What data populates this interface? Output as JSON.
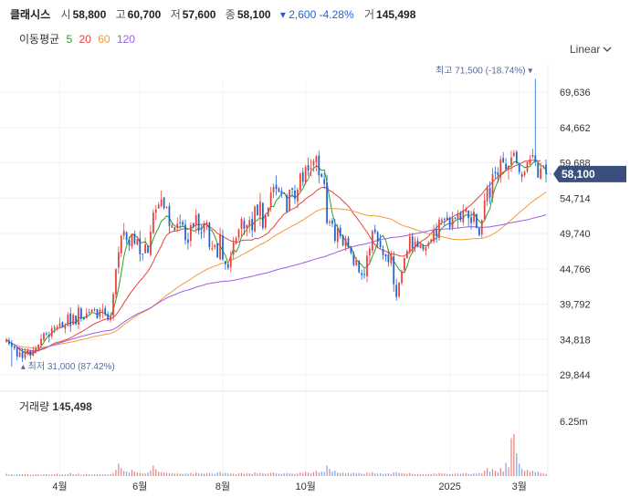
{
  "header": {
    "name": "클래시스",
    "open_label": "시",
    "open": "58,800",
    "high_label": "고",
    "high": "60,700",
    "low_label": "저",
    "low": "57,600",
    "close_label": "종",
    "close": "58,100",
    "change": "▾ 2,600 -4.28%",
    "volume_label": "거",
    "volume": "145,498"
  },
  "ma_legend": {
    "label": "이동평균",
    "items": [
      {
        "label": "5",
        "color": "#2ca02c"
      },
      {
        "label": "20",
        "color": "#e8413c"
      },
      {
        "label": "60",
        "color": "#f39a3b"
      },
      {
        "label": "120",
        "color": "#9b5de5"
      }
    ]
  },
  "scale_selector": {
    "label": "Linear"
  },
  "colors": {
    "up": "#e8413c",
    "down": "#1e63d6",
    "badge": "#3a4f7d"
  },
  "chart_data": {
    "type": "candlestick",
    "price_axis": {
      "ticks": [
        "69,636",
        "64,662",
        "59,688",
        "54,714",
        "49,740",
        "44,766",
        "39,792",
        "34,818",
        "29,844"
      ],
      "tick_values": [
        69636,
        64662,
        59688,
        54714,
        49740,
        44766,
        39792,
        34818,
        29844
      ]
    },
    "x_axis": {
      "ticks": [
        "4월",
        "6월",
        "8월",
        "10월",
        "2025",
        "3월"
      ],
      "tick_index": [
        20,
        50,
        81,
        112,
        166,
        192
      ]
    },
    "current_price": {
      "label": "58,100",
      "value": 58100
    },
    "max_note": {
      "prefix": "최고",
      "value": "71,500",
      "pct": "(-18.74%)",
      "marker": "▾",
      "index": 198,
      "price": 71500
    },
    "min_note": {
      "marker": "▴",
      "prefix": "최저",
      "value": "31,000",
      "pct": "(87.42%)",
      "index": 2,
      "price": 31000
    },
    "closes": [
      34800,
      34200,
      33800,
      33600,
      32400,
      33000,
      32200,
      32800,
      33300,
      32500,
      33200,
      33600,
      34100,
      34900,
      35700,
      35600,
      35200,
      36400,
      36400,
      36600,
      37100,
      36500,
      36900,
      38300,
      36700,
      38300,
      37000,
      39300,
      37700,
      37600,
      38500,
      38600,
      39000,
      39000,
      37800,
      39000,
      39000,
      38300,
      37600,
      38100,
      41200,
      44700,
      47100,
      49400,
      50100,
      48800,
      48000,
      49700,
      48300,
      48900,
      46800,
      46900,
      48200,
      47000,
      50000,
      52700,
      53100,
      53800,
      54500,
      53300,
      53500,
      50800,
      50900,
      50200,
      51100,
      51300,
      51000,
      48800,
      48400,
      50900,
      50700,
      52300,
      50100,
      49800,
      51100,
      51300,
      47800,
      47700,
      48100,
      46400,
      49600,
      46100,
      45400,
      44900,
      46600,
      48500,
      49100,
      50300,
      51800,
      50400,
      50900,
      51600,
      50200,
      53500,
      52300,
      54200,
      50500,
      52300,
      53400,
      55500,
      56300,
      56000,
      55600,
      55400,
      55400,
      52800,
      55900,
      55900,
      54600,
      55900,
      58200,
      57000,
      59100,
      58600,
      59000,
      59900,
      60600,
      57900,
      57700,
      56700,
      51200,
      51400,
      51100,
      48700,
      50500,
      49400,
      48100,
      49000,
      47900,
      47000,
      45300,
      46000,
      44300,
      43900,
      43900,
      46600,
      47600,
      50100,
      49900,
      48600,
      47800,
      46700,
      46500,
      45700,
      46800,
      42600,
      40800,
      42800,
      44400,
      46300,
      47300,
      49300,
      47700,
      48600,
      47800,
      48200,
      47500,
      47800,
      48400,
      48900,
      50300,
      49400,
      51700,
      51700,
      51700,
      51700,
      50600,
      51900,
      51900,
      52600,
      51600,
      53000,
      53200,
      51900,
      51200,
      52800,
      50500,
      49500,
      51600,
      54400,
      56200,
      54800,
      58100,
      58200,
      57900,
      60200,
      59700,
      58800,
      59300,
      60400,
      61100,
      59600,
      58400,
      57700,
      58400,
      59800,
      60200,
      60800,
      59800,
      57600,
      58900,
      59300,
      58100
    ],
    "ma": {
      "5": [
        34800,
        34500,
        34267,
        34100,
        33760,
        33400,
        33160,
        32880,
        32940,
        32760,
        32840,
        33080,
        33340,
        33860,
        34400,
        35020,
        35380,
        35700,
        36060,
        36360,
        36420,
        36580,
        36860,
        37100,
        37120,
        37340,
        37040,
        37860,
        37920,
        37840,
        38060,
        38200,
        38600,
        38560,
        38260,
        38640,
        38640,
        38420,
        38160,
        38000,
        38960,
        40380,
        42040,
        44180,
        46500,
        48060,
        49040,
        49660,
        49460,
        49220,
        48460,
        48460,
        48600,
        47980,
        47860,
        49000,
        49820,
        50580,
        51460,
        51780,
        52200,
        51980,
        51240,
        50820,
        50680,
        50620,
        50800,
        50520,
        50400,
        50400,
        50060,
        50220,
        50480,
        50300,
        51060,
        51120,
        50340,
        50120,
        49360,
        48360,
        48040,
        47240,
        46660,
        45600,
        46560,
        47460,
        47140,
        47880,
        49300,
        49820,
        50320,
        50920,
        50880,
        51460,
        51600,
        52040,
        51600,
        52480,
        52700,
        53540,
        53500,
        54380,
        54760,
        55380,
        55500,
        54720,
        54880,
        55130,
        54820,
        55000,
        55500,
        56080,
        56920,
        57340,
        58540,
        58880,
        59280,
        59020,
        58600,
        58700,
        56920,
        54700,
        52620,
        51220,
        50620,
        49600,
        49340,
        48680,
        47820,
        47940,
        46820,
        46020,
        45700,
        45300,
        44860,
        45070,
        45530,
        46500,
        47380,
        48600,
        49170,
        49440,
        48760,
        47300,
        46510,
        45880,
        45260,
        44660,
        44320,
        44220,
        45120,
        46420,
        47040,
        47760,
        48380,
        48390,
        48030,
        48000,
        48140,
        48560,
        49020,
        48980,
        49900,
        50460,
        50800,
        51020,
        51200,
        51040,
        51560,
        51720,
        51840,
        51940,
        52380,
        52260,
        52280,
        52600,
        51940,
        51470,
        51140,
        51520,
        52460,
        53210,
        55010,
        56200,
        57100,
        57980,
        58180,
        58700,
        59160,
        59200,
        59800,
        59880,
        59400,
        59320,
        59000,
        59120,
        59120,
        59620,
        60000,
        59800,
        59250,
        59240,
        58640
      ],
      "20": [
        34800,
        34500,
        34267,
        34100,
        33760,
        33400,
        33160,
        33050,
        33070,
        32950,
        33050,
        33140,
        33230,
        33370,
        33500,
        33660,
        33850,
        34080,
        34310,
        34400,
        34500,
        34610,
        34730,
        34870,
        35060,
        35250,
        35490,
        35680,
        35880,
        36090,
        36320,
        36570,
        36800,
        37020,
        37200,
        37360,
        37520,
        37660,
        37710,
        37740,
        37940,
        38270,
        38780,
        39340,
        39960,
        40520,
        41110,
        41640,
        42110,
        42620,
        43060,
        43480,
        43950,
        44440,
        45050,
        45790,
        46570,
        47310,
        48000,
        48880,
        49490,
        49800,
        50000,
        50090,
        50130,
        50240,
        50390,
        50330,
        50340,
        50440,
        50660,
        50930,
        51030,
        51010,
        51040,
        50970,
        50720,
        50420,
        50120,
        49750,
        49560,
        49340,
        49090,
        48900,
        48690,
        48620,
        48540,
        48560,
        48740,
        48790,
        48810,
        48800,
        48800,
        49030,
        49000,
        49140,
        49350,
        49560,
        49820,
        50290,
        50630,
        51120,
        51630,
        52050,
        52470,
        52680,
        52950,
        53180,
        53320,
        53600,
        53990,
        54220,
        54620,
        54870,
        55090,
        55380,
        55750,
        56000,
        56190,
        56250,
        56050,
        55800,
        55590,
        55260,
        54990,
        54690,
        54300,
        53960,
        53560,
        53120,
        52480,
        52020,
        51510,
        51010,
        50450,
        49920,
        49300,
        48670,
        48160,
        47750,
        47550,
        47390,
        47250,
        47050,
        46890,
        46820,
        46760,
        46600,
        46540,
        46560,
        46860,
        47130,
        47560,
        47930,
        48280,
        48550,
        48800,
        49000,
        49330,
        49790,
        50180,
        50550,
        50910,
        51290,
        51350,
        51630,
        51840,
        52040,
        52300,
        52480,
        52660,
        52920,
        53110,
        53490,
        53800,
        54170,
        54540,
        54940,
        55310,
        55780,
        56220,
        56580,
        56980,
        57380,
        57700,
        58040,
        58380,
        58550,
        58810,
        58920,
        59180,
        59340,
        59500,
        59680,
        59890,
        59980,
        59990,
        60050,
        60070,
        59970,
        59980
      ],
      "60": [
        34800,
        34500,
        34267,
        34100,
        33960,
        33880,
        33770,
        33720,
        33690,
        33650,
        33620,
        33600,
        33610,
        33660,
        33730,
        33800,
        33870,
        33950,
        34020,
        34090,
        34160,
        34220,
        34290,
        34370,
        34440,
        34520,
        34580,
        34680,
        34770,
        34850,
        34940,
        35040,
        35140,
        35230,
        35300,
        35390,
        35470,
        35540,
        35600,
        35660,
        35800,
        36010,
        36270,
        36570,
        36890,
        37170,
        37420,
        37720,
        37970,
        38230,
        38430,
        38620,
        38830,
        39000,
        39230,
        39520,
        39810,
        40120,
        40450,
        40750,
        41050,
        41310,
        41580,
        41850,
        42120,
        42380,
        42630,
        42840,
        43060,
        43320,
        43580,
        43840,
        44040,
        44240,
        44460,
        44680,
        44840,
        45000,
        45160,
        45270,
        45450,
        45570,
        45690,
        45790,
        45930,
        46090,
        46270,
        46470,
        46700,
        46880,
        47090,
        47300,
        47510,
        47740,
        47960,
        48190,
        48330,
        48530,
        48770,
        49030,
        49300,
        49530,
        49740,
        49950,
        50190,
        50370,
        50580,
        50810,
        50980,
        51180,
        51420,
        51630,
        51890,
        52120,
        52370,
        52620,
        52890,
        53030,
        53150,
        53230,
        53240,
        53240,
        53250,
        53220,
        53220,
        53190,
        53130,
        53100,
        53050,
        52960,
        52840,
        52760,
        52640,
        52520,
        52380,
        52300,
        52240,
        52230,
        52220,
        52180,
        52120,
        52020,
        51940,
        51840,
        51760,
        51560,
        51330,
        51120,
        50940,
        50790,
        50690,
        50590,
        50430,
        50300,
        50170,
        50060,
        49940,
        49820,
        49730,
        49640,
        49560,
        49460,
        49380,
        49270,
        49200,
        49110,
        49020,
        48950,
        48900,
        48870,
        48860,
        48870,
        48910,
        48950,
        48970,
        49020,
        49020,
        49010,
        49050,
        49140,
        49280,
        49410,
        49610,
        49840,
        50080,
        50380,
        50690,
        51020,
        51330,
        51650,
        52000,
        52350,
        52680,
        53000,
        53310,
        53630,
        53950,
        54260,
        54530,
        54770,
        55020,
        55300,
        55560
      ]
    },
    "volumes": [
      0.25,
      0.18,
      0.2,
      0.15,
      0.22,
      0.19,
      0.21,
      0.24,
      0.2,
      0.15,
      0.17,
      0.22,
      0.19,
      0.16,
      0.2,
      0.23,
      0.17,
      0.18,
      0.21,
      0.28,
      0.15,
      0.2,
      0.18,
      0.22,
      0.35,
      0.19,
      0.2,
      0.28,
      0.16,
      0.18,
      0.24,
      0.2,
      0.17,
      0.19,
      0.2,
      0.24,
      0.18,
      0.22,
      0.17,
      0.2,
      0.3,
      0.7,
      1.4,
      0.9,
      0.6,
      0.5,
      0.4,
      0.7,
      0.5,
      0.4,
      0.35,
      0.3,
      0.28,
      0.4,
      0.6,
      1.2,
      0.8,
      0.5,
      0.45,
      0.4,
      0.35,
      0.3,
      0.3,
      0.28,
      0.3,
      0.26,
      0.25,
      0.3,
      0.28,
      0.35,
      0.25,
      0.4,
      0.3,
      0.28,
      0.25,
      0.3,
      0.35,
      0.28,
      0.25,
      0.4,
      0.5,
      0.3,
      0.35,
      0.3,
      0.28,
      0.25,
      0.22,
      0.3,
      0.35,
      0.25,
      0.28,
      0.3,
      0.25,
      0.4,
      0.3,
      0.35,
      0.3,
      0.28,
      0.3,
      0.35,
      0.4,
      0.3,
      0.28,
      0.25,
      0.3,
      0.35,
      0.3,
      0.28,
      0.26,
      0.3,
      0.4,
      0.35,
      0.5,
      0.4,
      0.3,
      0.45,
      0.6,
      0.4,
      0.5,
      0.45,
      1.2,
      0.8,
      0.5,
      0.6,
      0.4,
      0.35,
      0.4,
      0.3,
      0.35,
      0.28,
      0.4,
      0.3,
      0.35,
      0.28,
      0.25,
      0.4,
      0.35,
      0.45,
      0.3,
      0.28,
      0.3,
      0.25,
      0.28,
      0.3,
      0.25,
      0.4,
      0.45,
      0.35,
      0.3,
      0.3,
      0.28,
      0.35,
      0.25,
      0.22,
      0.25,
      0.2,
      0.22,
      0.2,
      0.25,
      0.22,
      0.3,
      0.25,
      0.35,
      0.3,
      0.28,
      0.25,
      0.22,
      0.25,
      0.3,
      0.28,
      0.25,
      0.3,
      0.35,
      0.25,
      0.22,
      0.3,
      0.28,
      0.35,
      0.3,
      0.6,
      0.9,
      0.5,
      0.8,
      0.6,
      0.4,
      0.9,
      0.5,
      1.5,
      1.0,
      4.3,
      4.8,
      2.6,
      1.4,
      0.8,
      0.6,
      0.7,
      0.5,
      0.6,
      0.45,
      0.5,
      0.35,
      0.3,
      0.25
    ],
    "volume_axis": {
      "tick": "6.25m",
      "tick_value": 6.25,
      "label": "거래량",
      "value": "145,498"
    }
  }
}
